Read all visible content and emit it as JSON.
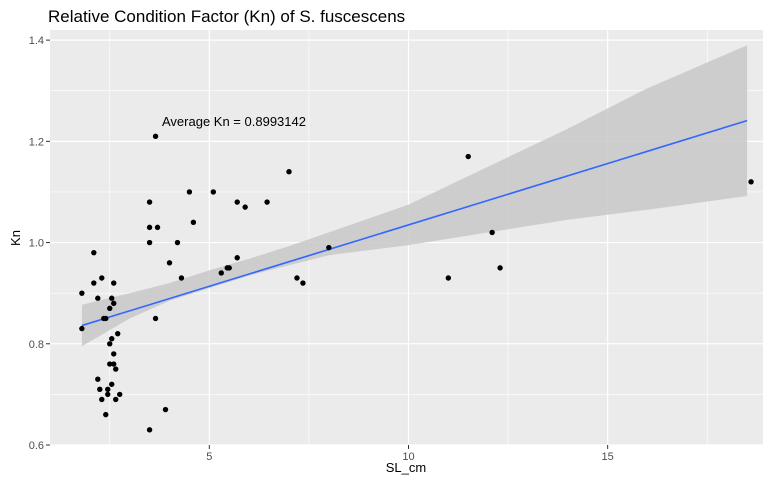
{
  "chart_data": {
    "type": "scatter",
    "title": "Relative Condition Factor (Kn) of S. fuscescens",
    "xlabel": "SL_cm",
    "ylabel": "Kn",
    "xlim": [
      1.0,
      18.9
    ],
    "ylim": [
      0.6,
      1.42
    ],
    "x_ticks": [
      5,
      10,
      15
    ],
    "y_ticks": [
      0.6,
      0.8,
      1.0,
      1.2,
      1.4
    ],
    "y_tick_labels": [
      "0.6",
      "0.8",
      "1.0",
      "1.2",
      "1.4"
    ],
    "grid": true,
    "annotation": {
      "text": "Average Kn = 0.8993142",
      "x": 1.5,
      "y": 1.24
    },
    "colors": {
      "panel": "#ebebeb",
      "grid": "#ffffff",
      "points": "#000000",
      "trend": "#3366ff",
      "band": "#c8c8c8"
    },
    "points": [
      {
        "x": 1.8,
        "y": 0.83
      },
      {
        "x": 1.8,
        "y": 0.9
      },
      {
        "x": 2.1,
        "y": 0.92
      },
      {
        "x": 2.1,
        "y": 0.98
      },
      {
        "x": 2.2,
        "y": 0.89
      },
      {
        "x": 2.2,
        "y": 0.73
      },
      {
        "x": 2.25,
        "y": 0.71
      },
      {
        "x": 2.3,
        "y": 0.93
      },
      {
        "x": 2.3,
        "y": 0.69
      },
      {
        "x": 2.35,
        "y": 0.85
      },
      {
        "x": 2.4,
        "y": 0.85
      },
      {
        "x": 2.4,
        "y": 0.66
      },
      {
        "x": 2.45,
        "y": 0.71
      },
      {
        "x": 2.45,
        "y": 0.7
      },
      {
        "x": 2.5,
        "y": 0.8
      },
      {
        "x": 2.5,
        "y": 0.76
      },
      {
        "x": 2.5,
        "y": 0.87
      },
      {
        "x": 2.55,
        "y": 0.89
      },
      {
        "x": 2.55,
        "y": 0.81
      },
      {
        "x": 2.55,
        "y": 0.72
      },
      {
        "x": 2.6,
        "y": 0.78
      },
      {
        "x": 2.6,
        "y": 0.76
      },
      {
        "x": 2.6,
        "y": 0.92
      },
      {
        "x": 2.6,
        "y": 0.88
      },
      {
        "x": 2.65,
        "y": 0.75
      },
      {
        "x": 2.65,
        "y": 0.69
      },
      {
        "x": 2.7,
        "y": 0.82
      },
      {
        "x": 2.75,
        "y": 0.7
      },
      {
        "x": 3.5,
        "y": 1.08
      },
      {
        "x": 3.5,
        "y": 1.03
      },
      {
        "x": 3.5,
        "y": 1.0
      },
      {
        "x": 3.5,
        "y": 0.63
      },
      {
        "x": 3.65,
        "y": 1.21
      },
      {
        "x": 3.65,
        "y": 0.85
      },
      {
        "x": 3.7,
        "y": 1.03
      },
      {
        "x": 3.9,
        "y": 0.67
      },
      {
        "x": 4.0,
        "y": 0.96
      },
      {
        "x": 4.2,
        "y": 1.0
      },
      {
        "x": 4.3,
        "y": 0.93
      },
      {
        "x": 4.5,
        "y": 1.1
      },
      {
        "x": 4.6,
        "y": 1.04
      },
      {
        "x": 5.1,
        "y": 1.1
      },
      {
        "x": 5.3,
        "y": 0.94
      },
      {
        "x": 5.45,
        "y": 0.95
      },
      {
        "x": 5.5,
        "y": 0.95
      },
      {
        "x": 5.7,
        "y": 1.08
      },
      {
        "x": 5.7,
        "y": 0.97
      },
      {
        "x": 5.9,
        "y": 1.07
      },
      {
        "x": 6.45,
        "y": 1.08
      },
      {
        "x": 7.0,
        "y": 1.14
      },
      {
        "x": 7.2,
        "y": 0.93
      },
      {
        "x": 7.35,
        "y": 0.92
      },
      {
        "x": 8.0,
        "y": 0.99
      },
      {
        "x": 11.0,
        "y": 0.93
      },
      {
        "x": 11.5,
        "y": 1.17
      },
      {
        "x": 12.1,
        "y": 1.02
      },
      {
        "x": 12.3,
        "y": 0.95
      },
      {
        "x": 18.6,
        "y": 1.12
      }
    ],
    "trend_line": {
      "x": [
        1.8,
        18.5
      ],
      "y": [
        0.836,
        1.241
      ]
    },
    "confidence_band": {
      "x": [
        1.8,
        3.0,
        4.0,
        5.0,
        6.0,
        7.0,
        8.0,
        10.0,
        12.0,
        14.0,
        16.0,
        18.5
      ],
      "lower": [
        0.795,
        0.85,
        0.885,
        0.91,
        0.935,
        0.955,
        0.975,
        0.995,
        1.02,
        1.045,
        1.065,
        1.092
      ],
      "upper": [
        0.877,
        0.9,
        0.92,
        0.945,
        0.968,
        0.993,
        1.02,
        1.075,
        1.15,
        1.225,
        1.305,
        1.39
      ]
    }
  }
}
